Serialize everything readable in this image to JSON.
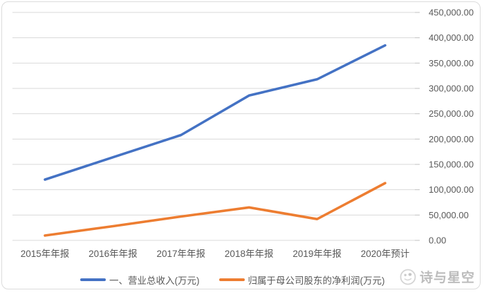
{
  "watermark": {
    "text": "诗与星空",
    "logo_icon": "panda-face-logo"
  },
  "chart_data": {
    "type": "line",
    "title": "",
    "xlabel": "",
    "ylabel": "",
    "categories": [
      "2015年年报",
      "2016年年报",
      "2017年年报",
      "2018年年报",
      "2019年年报",
      "2020年预计"
    ],
    "series": [
      {
        "name": "一、营业总收入(万元)",
        "color": "#4472C4",
        "values": [
          120000,
          164000,
          208000,
          286000,
          318000,
          385000
        ]
      },
      {
        "name": "归属于母公司股东的净利润(万元)",
        "color": "#ED7D31",
        "values": [
          9500,
          28000,
          47000,
          65000,
          42000,
          113000
        ]
      }
    ],
    "ylim": [
      0,
      450000
    ],
    "ytick_step": 50000,
    "ytick_labels": [
      "0.00",
      "50,000.00",
      "100,000.00",
      "150,000.00",
      "200,000.00",
      "250,000.00",
      "300,000.00",
      "350,000.00",
      "400,000.00",
      "450,000.00"
    ],
    "y_axis_side": "right",
    "grid": true,
    "legend_position": "bottom",
    "gridline_color": "#D9D9D9",
    "tick_color": "#BFBFBF",
    "axis_text_color": "#595959"
  }
}
